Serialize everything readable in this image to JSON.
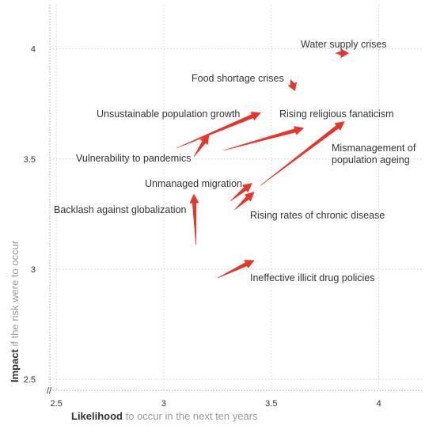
{
  "chart_data": {
    "type": "scatter",
    "x_axis": {
      "label_bold": "Likelihood",
      "label_rest": " to occur in the next ten years",
      "ticks": [
        2.5,
        3,
        3.5,
        4
      ],
      "tick_labels": [
        "2.5",
        "3",
        "3.5",
        "4"
      ],
      "range": [
        2.47,
        4.2
      ]
    },
    "y_axis": {
      "label_bold": "Impact",
      "label_rest": " if the risk were to occur",
      "ticks": [
        2.5,
        3,
        3.5,
        4
      ],
      "tick_labels": [
        "2.5",
        "3",
        "3.5",
        "4"
      ],
      "range": [
        2.45,
        4.2
      ]
    },
    "grid": true,
    "axis_break": "//",
    "arrow_color": "#e8352b",
    "series": [
      {
        "label": "Water supply crises",
        "from": [
          3.8,
          3.98
        ],
        "to": [
          3.86,
          3.98
        ]
      },
      {
        "label": "Food shortage crises",
        "from": [
          3.59,
          3.86
        ],
        "to": [
          3.61,
          3.81
        ]
      },
      {
        "label": "Unsustainable population growth",
        "from": [
          3.06,
          3.55
        ],
        "to": [
          3.45,
          3.71
        ]
      },
      {
        "label": "Rising religious fanaticism",
        "from": [
          3.28,
          3.54
        ],
        "to": [
          3.65,
          3.64
        ]
      },
      {
        "label": "Mismanagement of population ageing",
        "from": [
          3.45,
          3.38
        ],
        "to": [
          3.84,
          3.67
        ]
      },
      {
        "label": "Vulnerability to pandemics",
        "from": [
          3.14,
          3.51
        ],
        "to": [
          3.21,
          3.61
        ]
      },
      {
        "label": "Unmanaged migration",
        "from": [
          3.31,
          3.31
        ],
        "to": [
          3.41,
          3.39
        ]
      },
      {
        "label": "Rising rates of chronic disease",
        "from": [
          3.33,
          3.27
        ],
        "to": [
          3.42,
          3.35
        ]
      },
      {
        "label": "Backlash against globalization",
        "from": [
          3.15,
          3.11
        ],
        "to": [
          3.14,
          3.34
        ]
      },
      {
        "label": "Ineffective illicit drug policies",
        "from": [
          3.25,
          2.96
        ],
        "to": [
          3.42,
          3.04
        ]
      }
    ]
  }
}
